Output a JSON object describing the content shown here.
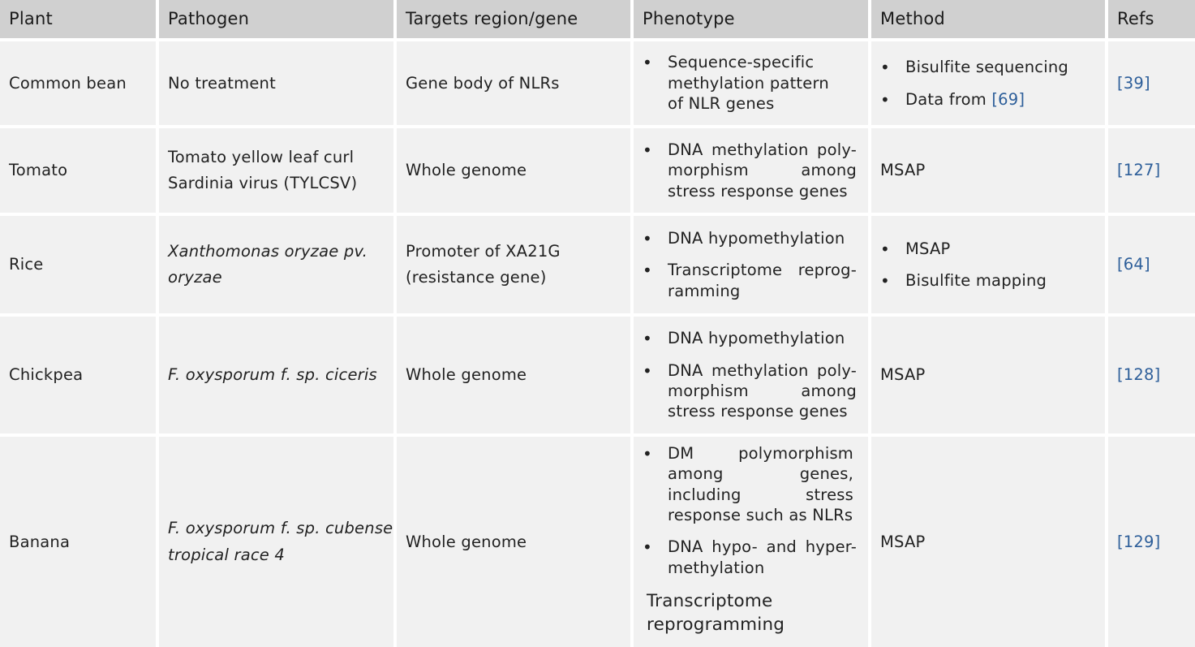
{
  "headers": {
    "plant": "Plant",
    "pathogen": "Pathogen",
    "target": "Targets region/gene",
    "phenotype": "Phenotype",
    "method": "Method",
    "refs": "Refs"
  },
  "rows": [
    {
      "plant": "Common bean",
      "pathogen_l1": "No treatment",
      "pathogen_l2": "",
      "target_l1": "Gene body of NLRs",
      "target_l2": "",
      "phenotype": [
        "Sequence-specific methylation pattern of NLR genes"
      ],
      "method_items": [
        "Bisulfite sequencing",
        "Data from "
      ],
      "method_cite": "[69]",
      "ref": "[39]"
    },
    {
      "plant": "Tomato",
      "pathogen_l1": "Tomato yellow leaf curl",
      "pathogen_l2": "Sardinia virus (TYLCSV)",
      "target_l1": "Whole genome",
      "target_l2": "",
      "phenotype": [
        "DNA methylation poly-morphism among stress response genes"
      ],
      "method": "MSAP",
      "ref": "[127]"
    },
    {
      "plant": "Rice",
      "pathogen_l1": "Xanthomonas oryzae pv.",
      "pathogen_l2": "oryzae",
      "target_l1": "Promoter of XA21G",
      "target_l2": "(resistance gene)",
      "phenotype": [
        "DNA hypomethylation",
        "Transcriptome reprog-ramming"
      ],
      "method_items": [
        "MSAP",
        "Bisulfite mapping"
      ],
      "ref": "[64]"
    },
    {
      "plant": "Chickpea",
      "pathogen_l1": "F. oxysporum f. sp. ciceris",
      "pathogen_l2": "",
      "target_l1": "Whole genome",
      "target_l2": "",
      "phenotype": [
        "DNA hypomethylation",
        "DNA methylation poly-morphism among stress response genes"
      ],
      "method": "MSAP",
      "ref": "[128]"
    },
    {
      "plant": "Banana",
      "pathogen_l1": "F. oxysporum f. sp. cubense",
      "pathogen_l2": "tropical race 4",
      "target_l1": "Whole genome",
      "target_l2": "",
      "phenotype": [
        "DM polymorphism among genes, including stress response such as NLRs",
        "DNA hypo- and hyper-methylation"
      ],
      "phenotype_tail": "Transcriptome reprogramming",
      "method": "MSAP",
      "ref": "[129]"
    }
  ]
}
